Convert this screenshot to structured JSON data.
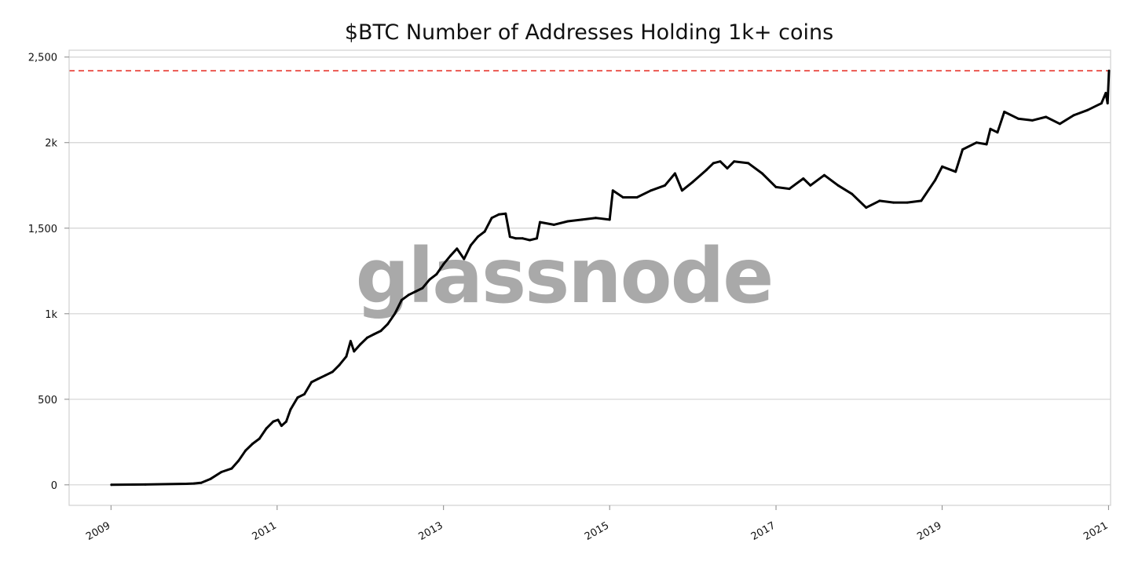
{
  "chart_data": {
    "type": "line",
    "title": "$BTC Number of Addresses Holding 1k+ coins",
    "watermark": "glassnode",
    "xlabel": "",
    "ylabel": "",
    "ylim": [
      -120,
      2540
    ],
    "xlim": [
      "2008-07-01",
      "2021-01-10"
    ],
    "x_ticks": [
      "2009",
      "2011",
      "2013",
      "2015",
      "2017",
      "2019",
      "2021"
    ],
    "y_ticks": [
      {
        "value": 0,
        "label": "0"
      },
      {
        "value": 500,
        "label": "500"
      },
      {
        "value": 1000,
        "label": "1k"
      },
      {
        "value": 1500,
        "label": "1,500"
      },
      {
        "value": 2000,
        "label": "2k"
      },
      {
        "value": 2500,
        "label": "2,500"
      }
    ],
    "grid": true,
    "reference_line": {
      "value": 2420,
      "color": "#e8382f",
      "style": "dashed"
    },
    "series": [
      {
        "color": "#000000",
        "points": [
          [
            "2009-01-03",
            0
          ],
          [
            "2009-06-01",
            2
          ],
          [
            "2009-12-01",
            6
          ],
          [
            "2010-01-01",
            8
          ],
          [
            "2010-02-01",
            12
          ],
          [
            "2010-03-15",
            35
          ],
          [
            "2010-05-01",
            75
          ],
          [
            "2010-06-15",
            95
          ],
          [
            "2010-07-15",
            140
          ],
          [
            "2010-08-15",
            200
          ],
          [
            "2010-09-15",
            240
          ],
          [
            "2010-10-15",
            270
          ],
          [
            "2010-11-15",
            330
          ],
          [
            "2010-12-15",
            370
          ],
          [
            "2011-01-05",
            380
          ],
          [
            "2011-01-20",
            345
          ],
          [
            "2011-02-10",
            370
          ],
          [
            "2011-03-01",
            440
          ],
          [
            "2011-04-01",
            510
          ],
          [
            "2011-05-01",
            530
          ],
          [
            "2011-06-01",
            600
          ],
          [
            "2011-07-01",
            620
          ],
          [
            "2011-08-01",
            640
          ],
          [
            "2011-09-01",
            660
          ],
          [
            "2011-10-01",
            700
          ],
          [
            "2011-11-01",
            750
          ],
          [
            "2011-11-20",
            840
          ],
          [
            "2011-12-05",
            780
          ],
          [
            "2012-01-01",
            820
          ],
          [
            "2012-02-01",
            860
          ],
          [
            "2012-03-01",
            880
          ],
          [
            "2012-04-01",
            900
          ],
          [
            "2012-05-01",
            940
          ],
          [
            "2012-06-01",
            1000
          ],
          [
            "2012-07-01",
            1080
          ],
          [
            "2012-08-01",
            1110
          ],
          [
            "2012-09-01",
            1130
          ],
          [
            "2012-10-01",
            1150
          ],
          [
            "2012-11-01",
            1200
          ],
          [
            "2012-12-01",
            1230
          ],
          [
            "2013-01-01",
            1290
          ],
          [
            "2013-02-01",
            1340
          ],
          [
            "2013-03-01",
            1380
          ],
          [
            "2013-04-01",
            1320
          ],
          [
            "2013-05-01",
            1400
          ],
          [
            "2013-06-01",
            1450
          ],
          [
            "2013-07-01",
            1480
          ],
          [
            "2013-08-01",
            1560
          ],
          [
            "2013-09-01",
            1580
          ],
          [
            "2013-10-01",
            1585
          ],
          [
            "2013-10-20",
            1450
          ],
          [
            "2013-11-15",
            1440
          ],
          [
            "2013-12-15",
            1440
          ],
          [
            "2014-01-15",
            1430
          ],
          [
            "2014-02-15",
            1440
          ],
          [
            "2014-03-01",
            1535
          ],
          [
            "2014-05-01",
            1520
          ],
          [
            "2014-07-01",
            1540
          ],
          [
            "2014-09-01",
            1550
          ],
          [
            "2014-11-01",
            1560
          ],
          [
            "2015-01-01",
            1550
          ],
          [
            "2015-01-15",
            1720
          ],
          [
            "2015-03-01",
            1680
          ],
          [
            "2015-05-01",
            1680
          ],
          [
            "2015-07-01",
            1720
          ],
          [
            "2015-09-01",
            1750
          ],
          [
            "2015-10-15",
            1820
          ],
          [
            "2015-11-15",
            1720
          ],
          [
            "2016-01-01",
            1770
          ],
          [
            "2016-03-01",
            1840
          ],
          [
            "2016-04-01",
            1880
          ],
          [
            "2016-05-01",
            1890
          ],
          [
            "2016-06-01",
            1850
          ],
          [
            "2016-07-01",
            1890
          ],
          [
            "2016-09-01",
            1880
          ],
          [
            "2016-11-01",
            1820
          ],
          [
            "2017-01-01",
            1740
          ],
          [
            "2017-03-01",
            1730
          ],
          [
            "2017-05-01",
            1790
          ],
          [
            "2017-06-01",
            1750
          ],
          [
            "2017-08-01",
            1810
          ],
          [
            "2017-10-01",
            1750
          ],
          [
            "2017-12-01",
            1700
          ],
          [
            "2018-02-01",
            1620
          ],
          [
            "2018-04-01",
            1660
          ],
          [
            "2018-06-01",
            1650
          ],
          [
            "2018-08-01",
            1650
          ],
          [
            "2018-10-01",
            1660
          ],
          [
            "2018-12-01",
            1780
          ],
          [
            "2019-01-01",
            1860
          ],
          [
            "2019-03-01",
            1830
          ],
          [
            "2019-04-01",
            1960
          ],
          [
            "2019-06-01",
            2000
          ],
          [
            "2019-07-15",
            1990
          ],
          [
            "2019-08-01",
            2080
          ],
          [
            "2019-09-01",
            2060
          ],
          [
            "2019-10-01",
            2180
          ],
          [
            "2019-12-01",
            2140
          ],
          [
            "2020-02-01",
            2130
          ],
          [
            "2020-04-01",
            2150
          ],
          [
            "2020-06-01",
            2110
          ],
          [
            "2020-08-01",
            2160
          ],
          [
            "2020-10-01",
            2190
          ],
          [
            "2020-12-01",
            2230
          ],
          [
            "2020-12-20",
            2290
          ],
          [
            "2020-12-28",
            2230
          ],
          [
            "2021-01-03",
            2420
          ]
        ]
      }
    ]
  }
}
